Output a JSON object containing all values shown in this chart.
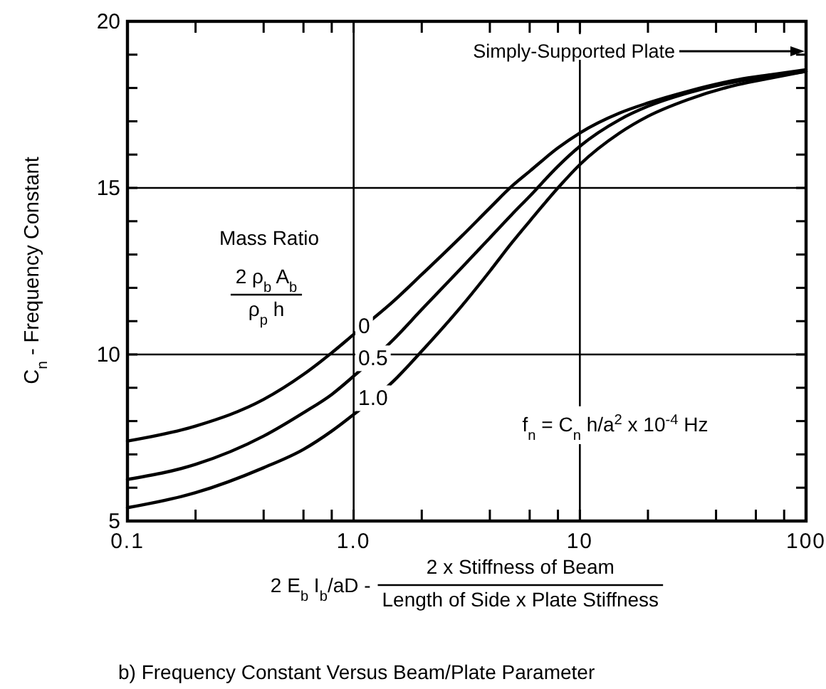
{
  "chart_data": {
    "type": "line",
    "title": "b) Frequency Constant Versus Beam/Plate Parameter",
    "xlabel": "2 E$_{b}$ I$_{b}$/aD - 2 x Stiffness of Beam\nLength of Side x Plate Stiffness",
    "ylabel": "C$_{n}$ - Frequency Constant",
    "legend_title": "Mass Ratio",
    "annotations": [
      "Simply-Supported Plate",
      "2 ρ$_{b}$ A$_{b}$\nρ$_{p}$ h",
      "f$_{n}$ = C$_{n}$ h/a$^{2}$ x 10$^{-4}$ Hz"
    ],
    "x": [
      0.1,
      0.2,
      0.4,
      0.6,
      0.8,
      1,
      1.5,
      2,
      3,
      4,
      5,
      6,
      8,
      10,
      15,
      20,
      30,
      50,
      70,
      100
    ],
    "series": [
      {
        "name": "0",
        "color": "#000000",
        "values": [
          7.4,
          7.85,
          8.65,
          9.4,
          10.05,
          10.6,
          11.6,
          12.4,
          13.55,
          14.4,
          15.05,
          15.5,
          16.2,
          16.65,
          17.25,
          17.55,
          17.9,
          18.25,
          18.4,
          18.55
        ]
      },
      {
        "name": "0.5",
        "color": "#000000",
        "values": [
          6.25,
          6.7,
          7.55,
          8.25,
          8.8,
          9.35,
          10.45,
          11.35,
          12.6,
          13.5,
          14.2,
          14.75,
          15.65,
          16.25,
          17.05,
          17.45,
          17.85,
          18.2,
          18.35,
          18.5
        ]
      },
      {
        "name": "1.0",
        "color": "#000000",
        "values": [
          5.4,
          5.85,
          6.6,
          7.15,
          7.7,
          8.2,
          9.2,
          10.1,
          11.45,
          12.5,
          13.35,
          14.0,
          15.0,
          15.7,
          16.65,
          17.15,
          17.65,
          18.1,
          18.3,
          18.5
        ]
      }
    ],
    "log": "x",
    "xlim": [
      0.1,
      100
    ],
    "ylim": [
      5,
      20
    ],
    "xticks": [
      0.1,
      {
        "value": 0.2,
        "label": null
      },
      {
        "value": 0.4,
        "label": null
      },
      {
        "value": 0.6,
        "label": null
      },
      {
        "value": 0.8,
        "label": null
      },
      {
        "value": 1,
        "label": "1.0"
      },
      {
        "value": 2,
        "label": null
      },
      {
        "value": 4,
        "label": null
      },
      {
        "value": 6,
        "label": null
      },
      {
        "value": 8,
        "label": null
      },
      10,
      {
        "value": 20,
        "label": null
      },
      {
        "value": 40,
        "label": null
      },
      {
        "value": 60,
        "label": null
      },
      {
        "value": 80,
        "label": null
      },
      100
    ],
    "yticks": [
      5,
      {
        "value": 6,
        "label": null
      },
      {
        "value": 7,
        "label": null
      },
      {
        "value": 8,
        "label": null
      },
      {
        "value": 9,
        "label": null
      },
      10,
      {
        "value": 11,
        "label": null
      },
      {
        "value": 12,
        "label": null
      },
      {
        "value": 13,
        "label": null
      },
      {
        "value": 14,
        "label": null
      },
      15,
      {
        "value": 16,
        "label": null
      },
      {
        "value": 17,
        "label": null
      },
      {
        "value": 18,
        "label": null
      },
      {
        "value": 19,
        "label": null
      },
      20
    ],
    "grid": true
  }
}
